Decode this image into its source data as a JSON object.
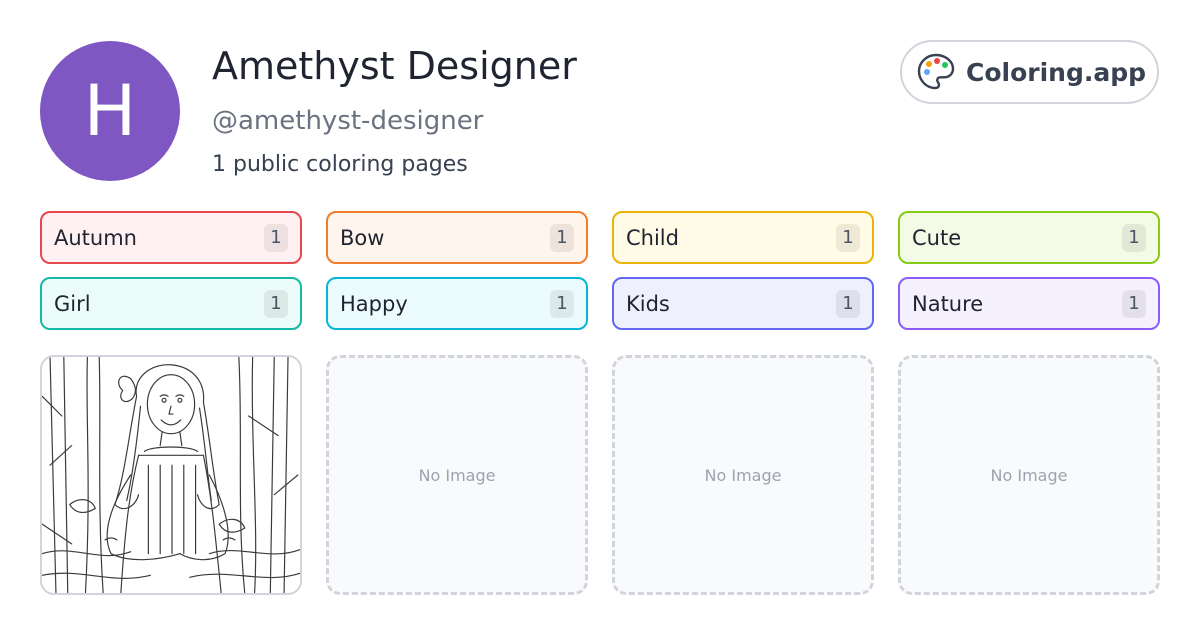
{
  "profile": {
    "avatar_initial": "H",
    "name": "Amethyst Designer",
    "handle": "@amethyst-designer",
    "page_count_text": "1 public coloring pages",
    "avatar_color": "#7e57c2"
  },
  "brand": {
    "label": "Coloring.app",
    "icon": "palette-icon"
  },
  "tags": [
    {
      "label": "Autumn",
      "count": "1",
      "border": "#e5484d",
      "bg": "#fff1f1"
    },
    {
      "label": "Bow",
      "count": "1",
      "border": "#f07d2a",
      "bg": "#fff5ec"
    },
    {
      "label": "Child",
      "count": "1",
      "border": "#e9b308",
      "bg": "#fffbe6"
    },
    {
      "label": "Cute",
      "count": "1",
      "border": "#84cc16",
      "bg": "#f3fbe7"
    },
    {
      "label": "Girl",
      "count": "1",
      "border": "#14b8a6",
      "bg": "#ecfcf9"
    },
    {
      "label": "Happy",
      "count": "1",
      "border": "#06b6d4",
      "bg": "#ecfbfd"
    },
    {
      "label": "Kids",
      "count": "1",
      "border": "#6366f1",
      "bg": "#eff0fe"
    },
    {
      "label": "Nature",
      "count": "1",
      "border": "#8b5cf6",
      "bg": "#f5f1fe"
    }
  ],
  "gallery": {
    "items": [
      {
        "type": "image",
        "subject": "girl-coloring-page"
      },
      {
        "type": "empty",
        "text": "No Image"
      },
      {
        "type": "empty",
        "text": "No Image"
      },
      {
        "type": "empty",
        "text": "No Image"
      }
    ]
  }
}
